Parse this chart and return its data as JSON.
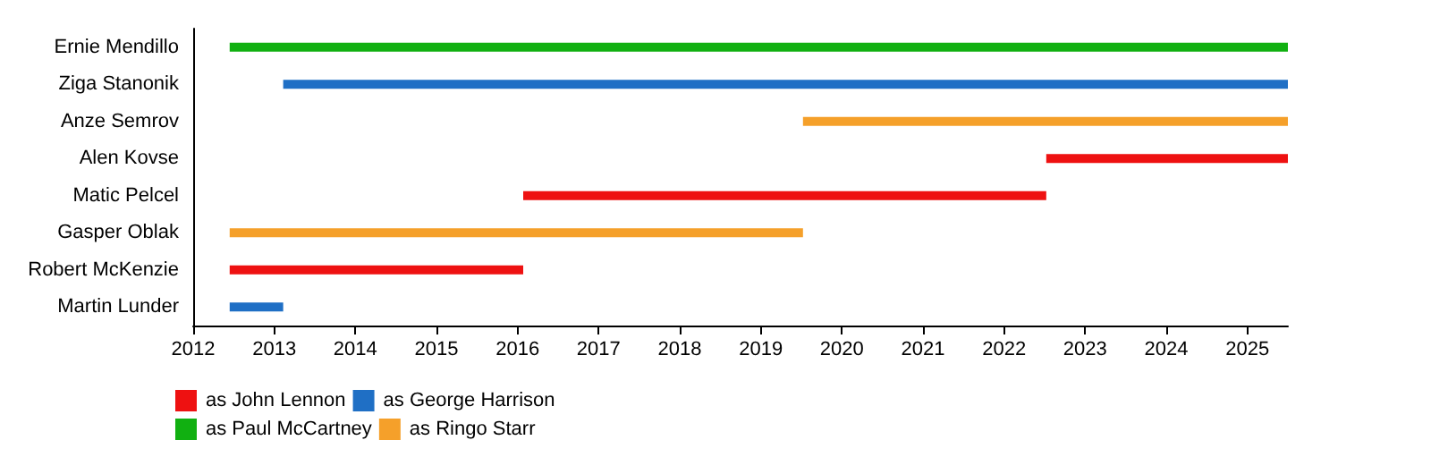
{
  "chart_data": {
    "type": "bar",
    "orientation": "horizontal",
    "categories": [
      "Ernie Mendillo",
      "Ziga Stanonik",
      "Anze Semrov",
      "Alen Kovse",
      "Matic Pelcel",
      "Gasper Oblak",
      "Robert McKenzie",
      "Martin Lunder"
    ],
    "series": [
      {
        "name": "as John Lennon",
        "color": "#ee1111",
        "base": [
          null,
          null,
          null,
          2022.52,
          2016.07,
          null,
          2012.45,
          null
        ],
        "values": [
          null,
          null,
          null,
          2.98,
          6.45,
          null,
          3.62,
          null
        ]
      },
      {
        "name": "as George Harrison",
        "color": "#1f6fc5",
        "base": [
          null,
          2013.11,
          null,
          null,
          null,
          null,
          null,
          2012.45
        ],
        "values": [
          null,
          12.39,
          null,
          null,
          null,
          null,
          null,
          0.66
        ]
      },
      {
        "name": "as Paul McCartney",
        "color": "#11b011",
        "base": [
          2012.45,
          null,
          null,
          null,
          null,
          null,
          null,
          null
        ],
        "values": [
          13.05,
          null,
          null,
          null,
          null,
          null,
          null,
          null
        ]
      },
      {
        "name": "as Ringo Starr",
        "color": "#f5a02a",
        "base": [
          null,
          null,
          2019.52,
          null,
          null,
          2012.45,
          null,
          null
        ],
        "values": [
          null,
          null,
          5.98,
          null,
          null,
          7.07,
          null,
          null
        ]
      }
    ],
    "xlim": [
      2012,
      2025.5
    ],
    "xticks": [
      2012,
      2013,
      2014,
      2015,
      2016,
      2017,
      2018,
      2019,
      2020,
      2021,
      2022,
      2023,
      2024,
      2025
    ],
    "grid": false,
    "legend": "bottom left"
  }
}
